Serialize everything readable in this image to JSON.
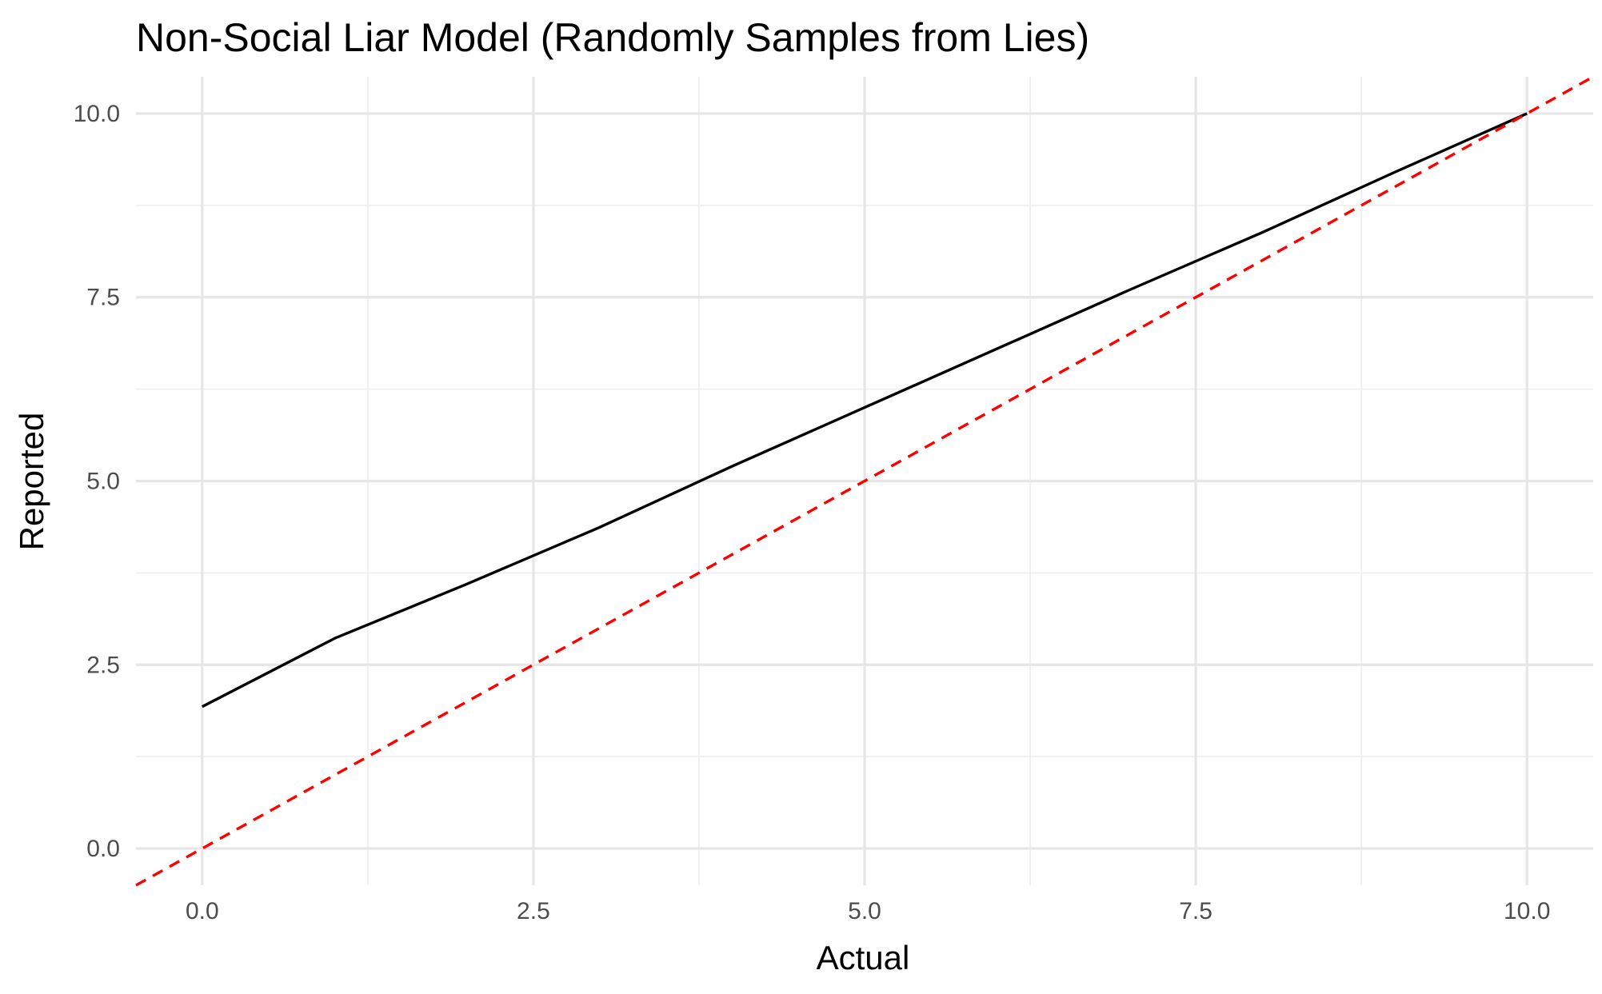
{
  "chart_data": {
    "type": "line",
    "title": "Non-Social Liar Model (Randomly Samples from Lies)",
    "xlabel": "Actual",
    "ylabel": "Reported",
    "xlim": [
      -0.5,
      10.5
    ],
    "ylim": [
      -0.5,
      10.5
    ],
    "x_ticks": [
      0.0,
      2.5,
      5.0,
      7.5,
      10.0
    ],
    "x_tick_labels": [
      "0.0",
      "2.5",
      "5.0",
      "7.5",
      "10.0"
    ],
    "y_ticks": [
      0.0,
      2.5,
      5.0,
      7.5,
      10.0
    ],
    "y_tick_labels": [
      "0.0",
      "2.5",
      "5.0",
      "7.5",
      "10.0"
    ],
    "grid": true,
    "legend": "none",
    "series": [
      {
        "color": "#000000",
        "style": "solid",
        "x": [
          0,
          1,
          2,
          3,
          4,
          5,
          6,
          7,
          8,
          9,
          10
        ],
        "y": [
          1.93,
          2.86,
          3.6,
          4.37,
          5.2,
          6.0,
          6.8,
          7.6,
          8.38,
          9.2,
          10.0
        ]
      },
      {
        "color": "#ff0000",
        "style": "dashed",
        "x": [
          -0.5,
          10.5
        ],
        "y": [
          -0.5,
          10.5
        ]
      }
    ]
  }
}
